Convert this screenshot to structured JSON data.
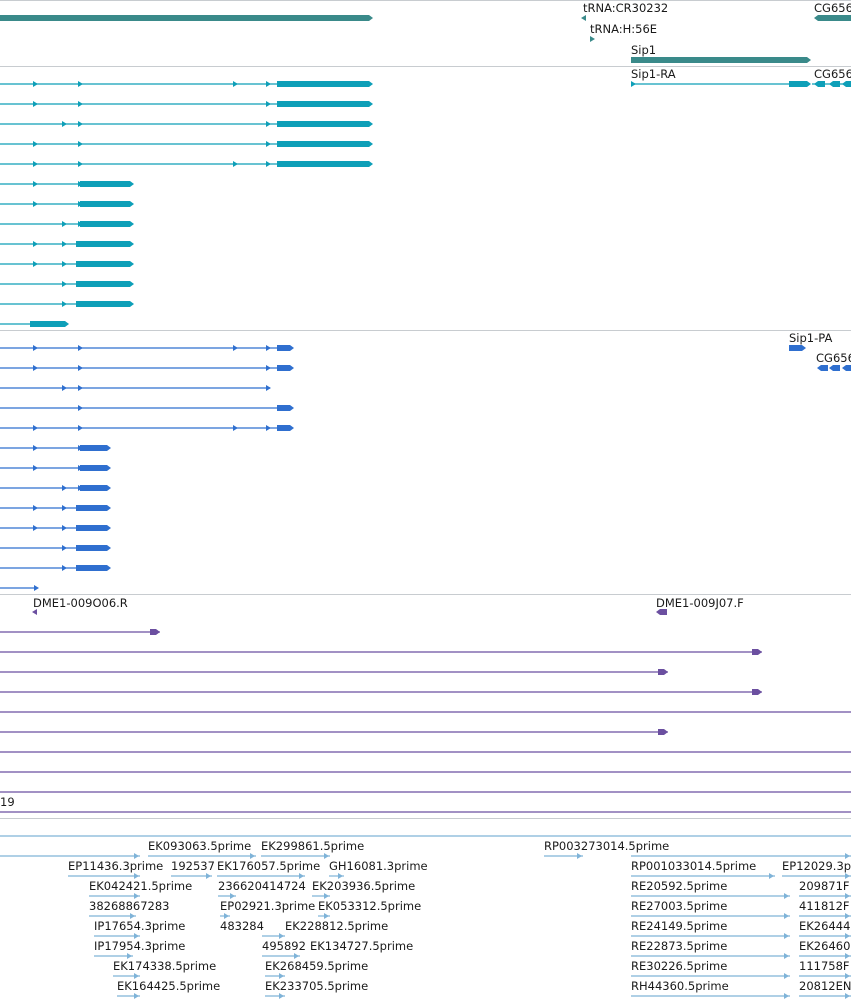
{
  "colors": {
    "gene": "#3a8a8a",
    "mrna": "#0e9fb8",
    "protein": "#2f6fcf",
    "clone": "#6b4fa0",
    "est": "#7fb3d8",
    "divider": "#c8ccd0"
  },
  "tracks": {
    "gene": {
      "labels": [
        "tRNA:CR30232",
        "tRNA:H:56E",
        "Sip1",
        "CG656"
      ]
    },
    "mrna": {
      "labels": [
        "Sip1-RA",
        "CG656"
      ]
    },
    "protein": {
      "labels": [
        "Sip1-PA",
        "CG656"
      ]
    },
    "clone": {
      "labels": [
        "DME1-009O06.R",
        "DME1-009J07.F",
        "19"
      ]
    },
    "est": {
      "labels": [
        "EK093063.5prime",
        "EK299861.5prime",
        "RP003273014.5prime",
        "EP11436.3prime",
        "192537",
        "EK176057.5prime",
        "GH16081.3prime",
        "RP001033014.5prime",
        "EP12029.3p",
        "EK042421.5prime",
        "236620414724",
        "EK203936.5prime",
        "RE20592.5prime",
        "209871F",
        "38268867283",
        "EP02921.3prime",
        "EK053312.5prime",
        "RE27003.5prime",
        "411812F",
        "IP17654.3prime",
        "483284",
        "EK228812.5prime",
        "RE24149.5prime",
        "EK26444",
        "IP17954.3prime",
        "495892",
        "EK134727.5prime",
        "RE22873.5prime",
        "EK26460",
        "EK174338.5prime",
        "EK268459.5prime",
        "RE30226.5prime",
        "111758F",
        "EK164425.5prime",
        "EK233705.5prime",
        "RH44360.5prime",
        "20812EN"
      ]
    }
  }
}
